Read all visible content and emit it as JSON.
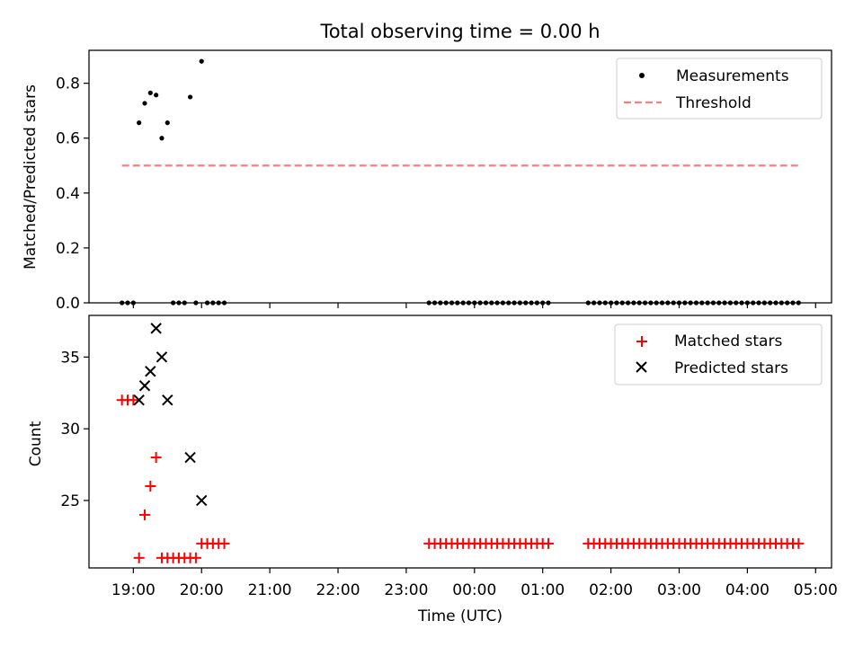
{
  "chart_data": [
    {
      "type": "scatter",
      "title": "Total observing time = 0.00 h",
      "ylabel": "Matched/Predicted stars",
      "xlabel": "",
      "xlim": [
        "18:21",
        "05:14"
      ],
      "ylim": [
        0,
        0.92
      ],
      "yticks": [
        0.0,
        0.2,
        0.4,
        0.6,
        0.8
      ],
      "ytick_labels": [
        "0.0",
        "0.2",
        "0.4",
        "0.6",
        "0.8"
      ],
      "legend_position": "top-right",
      "series": [
        {
          "name": "Measurements",
          "marker": "dot",
          "color": "#000000",
          "points": [
            [
              "18:50",
              0
            ],
            [
              "18:55",
              0
            ],
            [
              "19:00",
              0
            ],
            [
              "19:05",
              0.656
            ],
            [
              "19:10",
              0.727
            ],
            [
              "19:15",
              0.765
            ],
            [
              "19:20",
              0.757
            ],
            [
              "19:25",
              0.6
            ],
            [
              "19:30",
              0.656
            ],
            [
              "19:35",
              0
            ],
            [
              "19:40",
              0
            ],
            [
              "19:45",
              0
            ],
            [
              "19:50",
              0.75
            ],
            [
              "19:55",
              0
            ],
            [
              "20:00",
              0.88
            ],
            [
              "20:05",
              0
            ],
            [
              "20:10",
              0
            ],
            [
              "20:15",
              0
            ],
            [
              "20:20",
              0
            ],
            [
              "23:20",
              0
            ],
            [
              "23:25",
              0
            ],
            [
              "23:30",
              0
            ],
            [
              "23:35",
              0
            ],
            [
              "23:40",
              0
            ],
            [
              "23:45",
              0
            ],
            [
              "23:50",
              0
            ],
            [
              "23:55",
              0
            ],
            [
              "00:00",
              0
            ],
            [
              "00:05",
              0
            ],
            [
              "00:10",
              0
            ],
            [
              "00:15",
              0
            ],
            [
              "00:20",
              0
            ],
            [
              "00:25",
              0
            ],
            [
              "00:30",
              0
            ],
            [
              "00:35",
              0
            ],
            [
              "00:40",
              0
            ],
            [
              "00:45",
              0
            ],
            [
              "00:50",
              0
            ],
            [
              "00:55",
              0
            ],
            [
              "01:00",
              0
            ],
            [
              "01:05",
              0
            ],
            [
              "01:40",
              0
            ],
            [
              "01:45",
              0
            ],
            [
              "01:50",
              0
            ],
            [
              "01:55",
              0
            ],
            [
              "02:00",
              0
            ],
            [
              "02:05",
              0
            ],
            [
              "02:10",
              0
            ],
            [
              "02:15",
              0
            ],
            [
              "02:20",
              0
            ],
            [
              "02:25",
              0
            ],
            [
              "02:30",
              0
            ],
            [
              "02:35",
              0
            ],
            [
              "02:40",
              0
            ],
            [
              "02:45",
              0
            ],
            [
              "02:50",
              0
            ],
            [
              "02:55",
              0
            ],
            [
              "03:00",
              0
            ],
            [
              "03:05",
              0
            ],
            [
              "03:10",
              0
            ],
            [
              "03:15",
              0
            ],
            [
              "03:20",
              0
            ],
            [
              "03:25",
              0
            ],
            [
              "03:30",
              0
            ],
            [
              "03:35",
              0
            ],
            [
              "03:40",
              0
            ],
            [
              "03:45",
              0
            ],
            [
              "03:50",
              0
            ],
            [
              "03:55",
              0
            ],
            [
              "04:00",
              0
            ],
            [
              "04:05",
              0
            ],
            [
              "04:10",
              0
            ],
            [
              "04:15",
              0
            ],
            [
              "04:20",
              0
            ],
            [
              "04:25",
              0
            ],
            [
              "04:30",
              0
            ],
            [
              "04:35",
              0
            ],
            [
              "04:40",
              0
            ],
            [
              "04:45",
              0
            ]
          ]
        },
        {
          "name": "Threshold",
          "marker": "dashed-line",
          "color": "#ff7f7f",
          "points": [
            [
              "18:50",
              0.5
            ],
            [
              "04:45",
              0.5
            ]
          ]
        }
      ]
    },
    {
      "type": "scatter",
      "title": "",
      "ylabel": "Count",
      "xlabel": "Time (UTC)",
      "xlim": [
        "18:21",
        "05:14"
      ],
      "ylim": [
        20.3,
        37.9
      ],
      "yticks": [
        25,
        30,
        35
      ],
      "ytick_labels": [
        "25",
        "30",
        "35"
      ],
      "xticks": [
        "19:00",
        "20:00",
        "21:00",
        "22:00",
        "23:00",
        "00:00",
        "01:00",
        "02:00",
        "03:00",
        "04:00",
        "05:00"
      ],
      "legend_position": "top-right",
      "series": [
        {
          "name": "Matched stars",
          "marker": "plus",
          "color": "#ff0000",
          "points": [
            [
              "18:50",
              32
            ],
            [
              "18:55",
              32
            ],
            [
              "19:00",
              32
            ],
            [
              "19:05",
              21
            ],
            [
              "19:10",
              24
            ],
            [
              "19:15",
              26
            ],
            [
              "19:20",
              28
            ],
            [
              "19:25",
              21
            ],
            [
              "19:30",
              21
            ],
            [
              "19:35",
              21
            ],
            [
              "19:40",
              21
            ],
            [
              "19:45",
              21
            ],
            [
              "19:50",
              21
            ],
            [
              "19:55",
              21
            ],
            [
              "20:00",
              22
            ],
            [
              "20:05",
              22
            ],
            [
              "20:10",
              22
            ],
            [
              "20:15",
              22
            ],
            [
              "20:20",
              22
            ],
            [
              "23:20",
              22
            ],
            [
              "23:25",
              22
            ],
            [
              "23:30",
              22
            ],
            [
              "23:35",
              22
            ],
            [
              "23:40",
              22
            ],
            [
              "23:45",
              22
            ],
            [
              "23:50",
              22
            ],
            [
              "23:55",
              22
            ],
            [
              "00:00",
              22
            ],
            [
              "00:05",
              22
            ],
            [
              "00:10",
              22
            ],
            [
              "00:15",
              22
            ],
            [
              "00:20",
              22
            ],
            [
              "00:25",
              22
            ],
            [
              "00:30",
              22
            ],
            [
              "00:35",
              22
            ],
            [
              "00:40",
              22
            ],
            [
              "00:45",
              22
            ],
            [
              "00:50",
              22
            ],
            [
              "00:55",
              22
            ],
            [
              "01:00",
              22
            ],
            [
              "01:05",
              22
            ],
            [
              "01:40",
              22
            ],
            [
              "01:45",
              22
            ],
            [
              "01:50",
              22
            ],
            [
              "01:55",
              22
            ],
            [
              "02:00",
              22
            ],
            [
              "02:05",
              22
            ],
            [
              "02:10",
              22
            ],
            [
              "02:15",
              22
            ],
            [
              "02:20",
              22
            ],
            [
              "02:25",
              22
            ],
            [
              "02:30",
              22
            ],
            [
              "02:35",
              22
            ],
            [
              "02:40",
              22
            ],
            [
              "02:45",
              22
            ],
            [
              "02:50",
              22
            ],
            [
              "02:55",
              22
            ],
            [
              "03:00",
              22
            ],
            [
              "03:05",
              22
            ],
            [
              "03:10",
              22
            ],
            [
              "03:15",
              22
            ],
            [
              "03:20",
              22
            ],
            [
              "03:25",
              22
            ],
            [
              "03:30",
              22
            ],
            [
              "03:35",
              22
            ],
            [
              "03:40",
              22
            ],
            [
              "03:45",
              22
            ],
            [
              "03:50",
              22
            ],
            [
              "03:55",
              22
            ],
            [
              "04:00",
              22
            ],
            [
              "04:05",
              22
            ],
            [
              "04:10",
              22
            ],
            [
              "04:15",
              22
            ],
            [
              "04:20",
              22
            ],
            [
              "04:25",
              22
            ],
            [
              "04:30",
              22
            ],
            [
              "04:35",
              22
            ],
            [
              "04:40",
              22
            ],
            [
              "04:45",
              22
            ]
          ]
        },
        {
          "name": "Predicted stars",
          "marker": "x",
          "color": "#000000",
          "points": [
            [
              "19:05",
              32
            ],
            [
              "19:10",
              33
            ],
            [
              "19:15",
              34
            ],
            [
              "19:20",
              37
            ],
            [
              "19:25",
              35
            ],
            [
              "19:30",
              32
            ],
            [
              "19:50",
              28
            ],
            [
              "20:00",
              25
            ]
          ]
        }
      ]
    }
  ]
}
